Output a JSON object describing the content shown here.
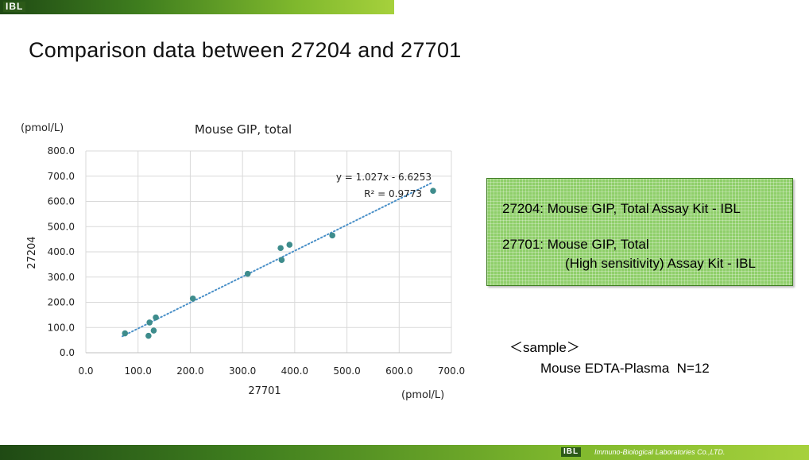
{
  "header": {
    "logo_text": "IBL",
    "slide_title": "Comparison data between 27204 and 27701"
  },
  "chart_data": {
    "type": "scatter",
    "title": "Mouse GIP, total",
    "xlabel": "27701",
    "ylabel": "27204",
    "x_unit": "(pmol/L)",
    "y_unit": "(pmol/L)",
    "xlim": [
      0,
      700
    ],
    "ylim": [
      0,
      800
    ],
    "xticks": [
      "0.0",
      "100.0",
      "200.0",
      "300.0",
      "400.0",
      "500.0",
      "600.0",
      "700.0"
    ],
    "yticks": [
      "0.0",
      "100.0",
      "200.0",
      "300.0",
      "400.0",
      "500.0",
      "600.0",
      "700.0",
      "800.0"
    ],
    "grid": true,
    "points": [
      {
        "x": 75,
        "y": 77
      },
      {
        "x": 120,
        "y": 67
      },
      {
        "x": 122,
        "y": 120
      },
      {
        "x": 130,
        "y": 88
      },
      {
        "x": 134,
        "y": 140
      },
      {
        "x": 205,
        "y": 215
      },
      {
        "x": 310,
        "y": 313
      },
      {
        "x": 375,
        "y": 368
      },
      {
        "x": 373,
        "y": 415
      },
      {
        "x": 390,
        "y": 428
      },
      {
        "x": 472,
        "y": 465
      },
      {
        "x": 665,
        "y": 642
      }
    ],
    "trendline": {
      "slope": 1.027,
      "intercept": -6.6253,
      "x_range": [
        70,
        665
      ],
      "style": "dotted"
    },
    "annotations": {
      "equation": "y = 1.027x - 6.6253",
      "r_squared": "R² = 0.9773"
    },
    "colors": {
      "point": "#3e8c8c",
      "trend": "#4a90c8",
      "grid": "#d9d9d9"
    }
  },
  "info_box": {
    "line1": "27204: Mouse GIP, Total Assay Kit - IBL",
    "line2": "27701: Mouse GIP, Total",
    "line3": "(High sensitivity) Assay Kit - IBL"
  },
  "sample": {
    "label": "＜sample＞",
    "description": "Mouse EDTA-Plasma  N=12"
  },
  "footer": {
    "logo_text": "IBL",
    "company": "Immuno-Biological Laboratories Co.,LTD."
  }
}
